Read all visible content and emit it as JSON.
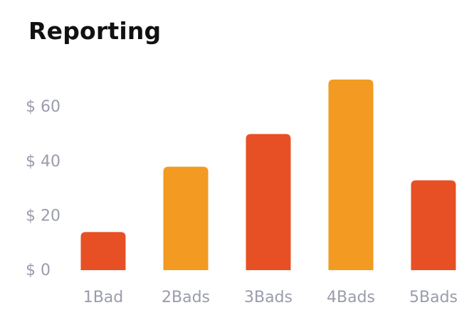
{
  "title": "Reporting",
  "colors": {
    "primary": "#e65024",
    "secondary": "#f29a21",
    "axis_text": "#9a9cab",
    "title": "#111111"
  },
  "chart_data": {
    "type": "bar",
    "title": "Reporting",
    "xlabel": "",
    "ylabel": "",
    "categories": [
      "1Bad",
      "2Bads",
      "3Bads",
      "4Bads",
      "5Bads"
    ],
    "values": [
      14,
      38,
      50,
      70,
      33
    ],
    "bar_colors": [
      "#e65024",
      "#f29a21",
      "#e65024",
      "#f29a21",
      "#e65024"
    ],
    "y_ticks": [
      0,
      20,
      40,
      60
    ],
    "y_tick_labels": [
      "$ 0",
      "$ 20",
      "$ 40",
      "$ 60"
    ],
    "ylim": [
      0,
      70
    ],
    "grid": false,
    "legend": "none"
  }
}
